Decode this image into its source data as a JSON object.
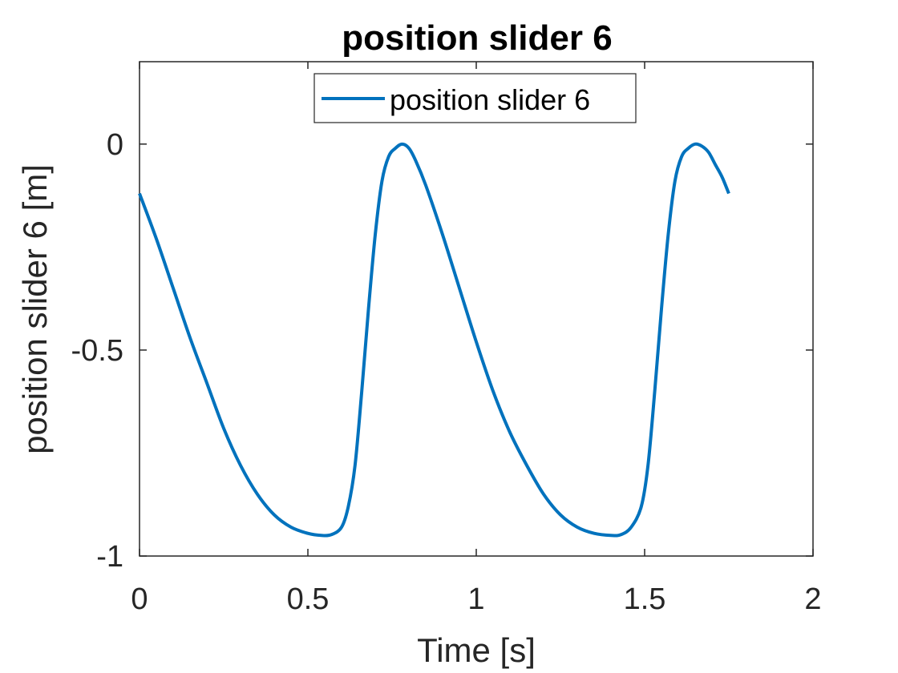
{
  "chart_data": {
    "type": "line",
    "title": "position slider 6",
    "xlabel": "Time [s]",
    "ylabel": "position slider 6 [m]",
    "xlim": [
      0,
      2
    ],
    "ylim": [
      -1,
      0.2
    ],
    "xticks": [
      0,
      0.5,
      1,
      1.5,
      2
    ],
    "xtick_labels": [
      "0",
      "0.5",
      "1",
      "1.5",
      "2"
    ],
    "yticks": [
      -1,
      -0.5,
      0
    ],
    "ytick_labels": [
      "-1",
      "-0.5",
      "0"
    ],
    "grid": false,
    "legend_position": "top",
    "series": [
      {
        "name": "position slider 6",
        "color": "#0072BD",
        "x": [
          0,
          0.05,
          0.1,
          0.15,
          0.2,
          0.25,
          0.3,
          0.35,
          0.4,
          0.45,
          0.5,
          0.54,
          0.57,
          0.6,
          0.62,
          0.64,
          0.66,
          0.68,
          0.7,
          0.72,
          0.74,
          0.76,
          0.78,
          0.8,
          0.82,
          0.85,
          0.9,
          0.95,
          1.0,
          1.05,
          1.1,
          1.15,
          1.2,
          1.25,
          1.3,
          1.35,
          1.4,
          1.43,
          1.46,
          1.49,
          1.51,
          1.53,
          1.55,
          1.57,
          1.59,
          1.61,
          1.63,
          1.65,
          1.67,
          1.69,
          1.71,
          1.73,
          1.75
        ],
        "y": [
          -0.12,
          -0.23,
          -0.35,
          -0.47,
          -0.58,
          -0.69,
          -0.78,
          -0.85,
          -0.9,
          -0.93,
          -0.945,
          -0.95,
          -0.948,
          -0.93,
          -0.88,
          -0.78,
          -0.6,
          -0.4,
          -0.22,
          -0.09,
          -0.03,
          -0.01,
          0.0,
          -0.01,
          -0.04,
          -0.1,
          -0.22,
          -0.35,
          -0.48,
          -0.6,
          -0.7,
          -0.78,
          -0.85,
          -0.9,
          -0.93,
          -0.945,
          -0.95,
          -0.948,
          -0.93,
          -0.88,
          -0.78,
          -0.6,
          -0.4,
          -0.22,
          -0.09,
          -0.03,
          -0.01,
          0.0,
          -0.005,
          -0.02,
          -0.05,
          -0.08,
          -0.12
        ]
      }
    ]
  }
}
